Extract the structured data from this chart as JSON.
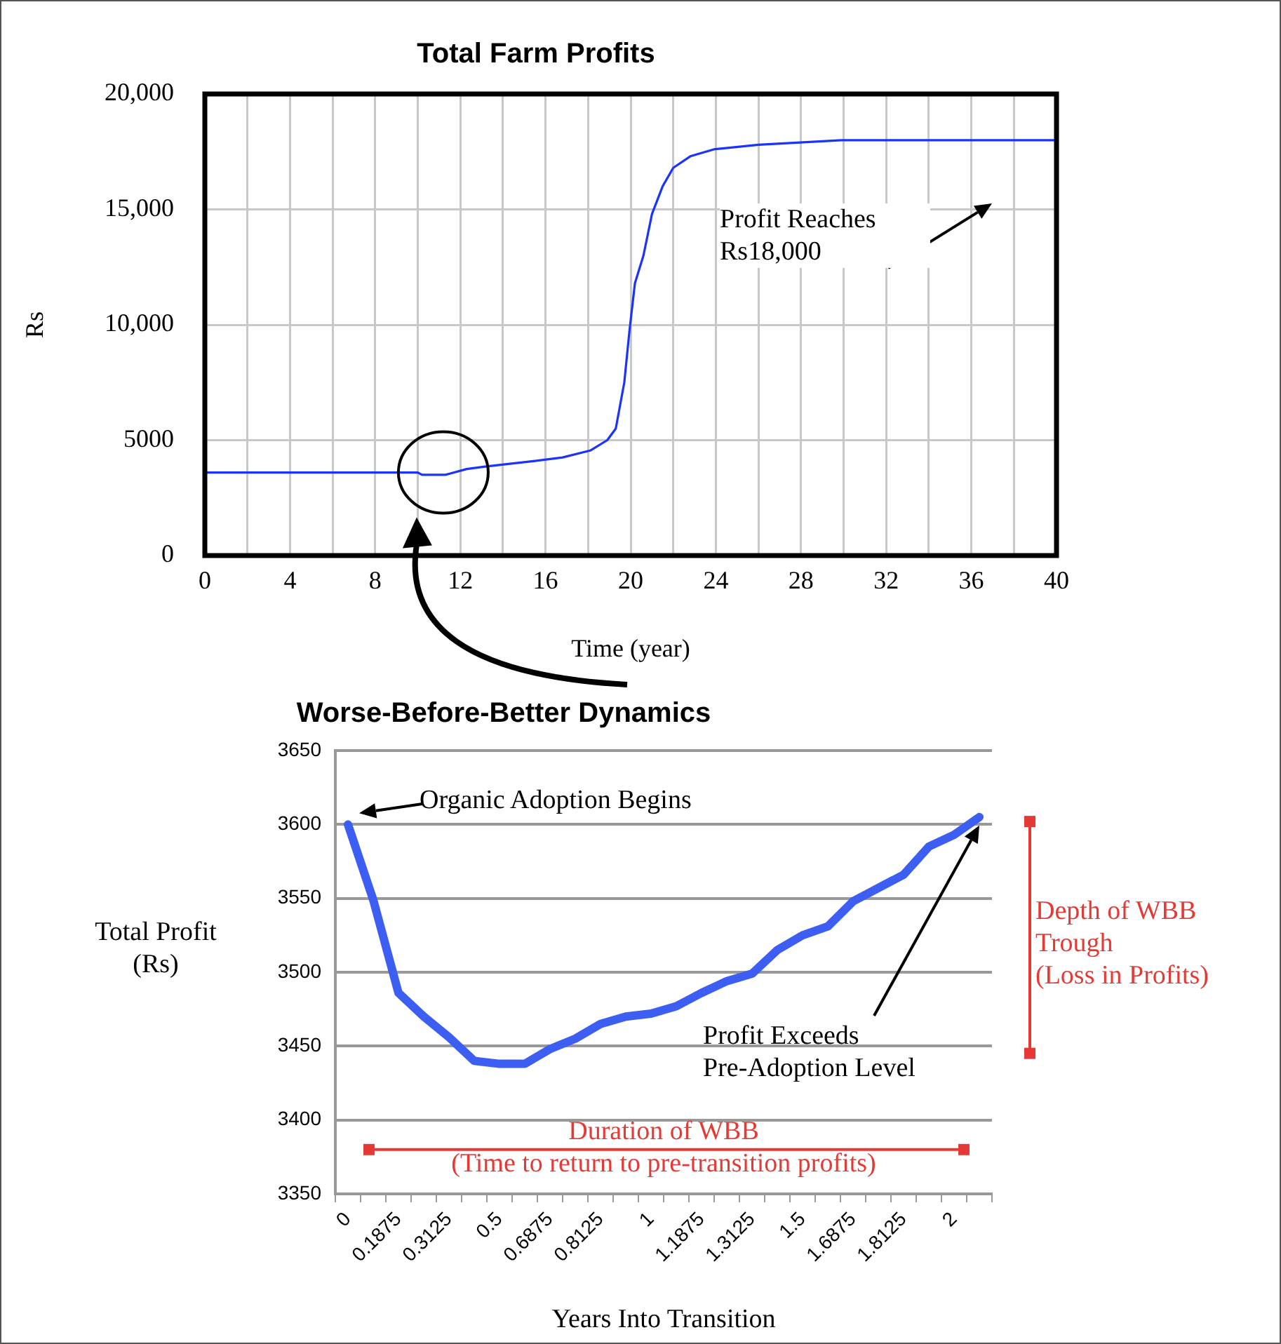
{
  "chart_data": [
    {
      "type": "line",
      "title": "Total Farm Profits",
      "xlabel": "Time (year)",
      "ylabel": "Rs",
      "x": [
        0,
        10,
        10.2,
        11.3,
        11.5,
        12.3,
        13.1,
        15.5,
        16.8,
        18.1,
        18.9,
        19.3,
        19.7,
        19.95,
        20.2,
        20.6,
        21,
        21.5,
        22,
        22.8,
        23.9,
        26,
        29.9,
        40
      ],
      "series": [
        {
          "color": "#1a33ff",
          "values": [
            3600,
            3600,
            3500,
            3500,
            3550,
            3750,
            3850,
            4100,
            4250,
            4550,
            5000,
            5500,
            7500,
            9800,
            11800,
            13000,
            14800,
            16000,
            16800,
            17300,
            17600,
            17800,
            18000,
            18000
          ]
        }
      ],
      "xlim": [
        0,
        40
      ],
      "xticks": [
        0,
        {
          "value": 2,
          "label": null
        },
        4,
        {
          "value": 6,
          "label": null
        },
        8,
        {
          "value": 10,
          "label": null
        },
        12,
        {
          "value": 14,
          "label": null
        },
        16,
        {
          "value": 18,
          "label": null
        },
        20,
        {
          "value": 22,
          "label": null
        },
        24,
        {
          "value": 26,
          "label": null
        },
        28,
        {
          "value": 30,
          "label": null
        },
        32,
        {
          "value": 34,
          "label": null
        },
        36,
        {
          "value": 38,
          "label": null
        },
        40
      ],
      "ylim": [
        0,
        20000
      ],
      "yticks": [
        0,
        5000,
        {
          "value": 10000,
          "label": "10,000"
        },
        {
          "value": 15000,
          "label": "15,000"
        },
        {
          "value": 20000,
          "label": "20,000"
        }
      ],
      "grid": true,
      "legend": false,
      "marker": "none",
      "line_style": "solid",
      "annotations": [
        "Profit Reaches Rs18,000"
      ]
    },
    {
      "type": "line",
      "title": "Worse-Before-Better Dynamics",
      "xlabel": "Years Into Transition",
      "ylabel": "Total Profit (Rs)",
      "categories": [
        "0",
        null,
        "0.1875",
        null,
        "0.3125",
        null,
        "0.5",
        null,
        "0.6875",
        null,
        "0.8125",
        null,
        "1",
        null,
        "1.1875",
        null,
        "1.3125",
        null,
        "1.5",
        null,
        "1.6875",
        null,
        "1.8125",
        null,
        "2",
        null
      ],
      "series": [
        {
          "color": "#3d5ef2",
          "values": [
            3600,
            3549,
            3486,
            3470,
            3456,
            3440,
            3438,
            3438,
            3448,
            3455,
            3465,
            3470,
            3472,
            3477,
            3486,
            3494,
            3499,
            3515,
            3525,
            3531,
            3548,
            3557,
            3566,
            3585,
            3593,
            3605
          ]
        }
      ],
      "ylim": [
        3350,
        3650
      ],
      "yticks": [
        3350,
        3400,
        3450,
        3500,
        3550,
        3600,
        3650
      ],
      "grid": "y",
      "legend": false,
      "marker": "none",
      "line_style": "solid",
      "annotations": [
        {
          "text": "Organic Adoption Begins",
          "x": "0",
          "y": 3600
        },
        "Profit Exceeds Pre-Adoption Level",
        "Depth of WBB Trough (Loss in Profits)"
      ],
      "ref_lines": [
        {
          "axis": "y",
          "value": 3380,
          "label": "Duration of WBB (Time to return to pre-transition profits)",
          "color": "#e53935"
        }
      ]
    }
  ]
}
